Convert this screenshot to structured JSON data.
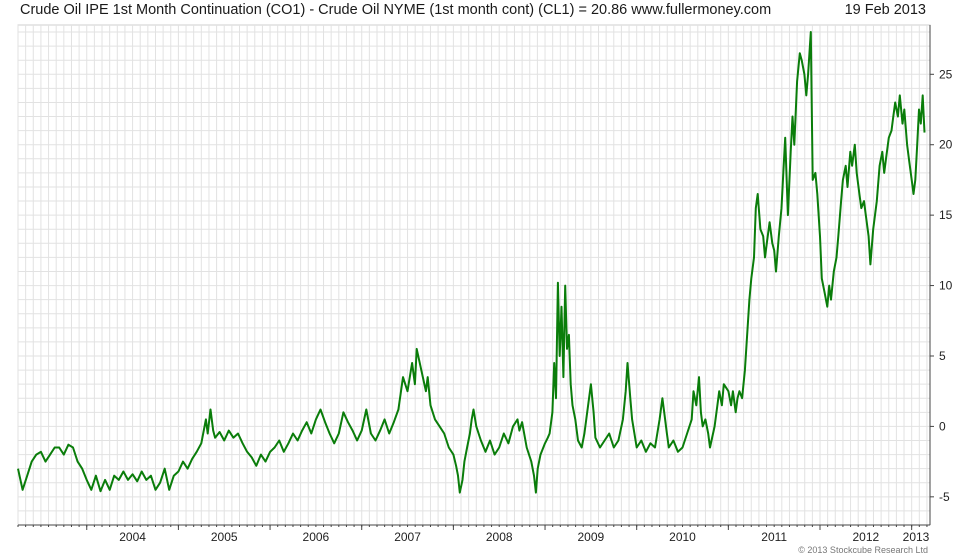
{
  "title": "Crude Oil IPE 1st Month Continuation (CO1) - Crude Oil NYME (1st month cont) (CL1) = 20.86 www.fullermoney.com",
  "date": "19 Feb 2013",
  "credit": "© 2013 Stockcube Research Ltd",
  "colors": {
    "line": "#0a7d0a",
    "grid": "#e2e2e2",
    "axis": "#444444"
  },
  "chart_data": {
    "type": "line",
    "title": "Crude Oil IPE 1st Month Continuation (CO1) - Crude Oil NYME (1st month cont) (CL1) = 20.86",
    "last_value": 20.86,
    "xlim": [
      2003.25,
      2013.2
    ],
    "ylim": [
      -7,
      28.5
    ],
    "x_ticks": [
      {
        "x": 2004,
        "label": "2004"
      },
      {
        "x": 2005,
        "label": "2005"
      },
      {
        "x": 2006,
        "label": "2006"
      },
      {
        "x": 2007,
        "label": "2007"
      },
      {
        "x": 2008,
        "label": "2008"
      },
      {
        "x": 2009,
        "label": "2009"
      },
      {
        "x": 2010,
        "label": "2010"
      },
      {
        "x": 2011,
        "label": "2011"
      },
      {
        "x": 2012,
        "label": "2012"
      },
      {
        "x": 2013,
        "label": "2013"
      }
    ],
    "y_ticks": [
      {
        "y": -5,
        "label": "-5"
      },
      {
        "y": 0,
        "label": "0"
      },
      {
        "y": 5,
        "label": "5"
      },
      {
        "y": 10,
        "label": "10"
      },
      {
        "y": 15,
        "label": "15"
      },
      {
        "y": 20,
        "label": "20"
      },
      {
        "y": 25,
        "label": "25"
      }
    ],
    "grid": true,
    "y_axis_side": "right",
    "series": [
      {
        "color": "#0a7d0a",
        "points": [
          [
            2003.25,
            -3.0
          ],
          [
            2003.3,
            -4.5
          ],
          [
            2003.35,
            -3.5
          ],
          [
            2003.4,
            -2.5
          ],
          [
            2003.45,
            -2.0
          ],
          [
            2003.5,
            -1.8
          ],
          [
            2003.55,
            -2.5
          ],
          [
            2003.6,
            -2.0
          ],
          [
            2003.65,
            -1.5
          ],
          [
            2003.7,
            -1.5
          ],
          [
            2003.75,
            -2.0
          ],
          [
            2003.8,
            -1.3
          ],
          [
            2003.85,
            -1.5
          ],
          [
            2003.9,
            -2.5
          ],
          [
            2003.95,
            -3.0
          ],
          [
            2004.0,
            -3.8
          ],
          [
            2004.05,
            -4.5
          ],
          [
            2004.1,
            -3.5
          ],
          [
            2004.15,
            -4.6
          ],
          [
            2004.2,
            -3.8
          ],
          [
            2004.25,
            -4.5
          ],
          [
            2004.3,
            -3.5
          ],
          [
            2004.35,
            -3.8
          ],
          [
            2004.4,
            -3.2
          ],
          [
            2004.45,
            -3.8
          ],
          [
            2004.5,
            -3.4
          ],
          [
            2004.55,
            -3.9
          ],
          [
            2004.6,
            -3.2
          ],
          [
            2004.65,
            -3.8
          ],
          [
            2004.7,
            -3.5
          ],
          [
            2004.75,
            -4.5
          ],
          [
            2004.8,
            -4.0
          ],
          [
            2004.85,
            -3.0
          ],
          [
            2004.9,
            -4.5
          ],
          [
            2004.95,
            -3.5
          ],
          [
            2005.0,
            -3.2
          ],
          [
            2005.05,
            -2.5
          ],
          [
            2005.1,
            -3.0
          ],
          [
            2005.15,
            -2.3
          ],
          [
            2005.2,
            -1.8
          ],
          [
            2005.25,
            -1.2
          ],
          [
            2005.3,
            0.5
          ],
          [
            2005.32,
            -0.5
          ],
          [
            2005.35,
            1.2
          ],
          [
            2005.38,
            -0.3
          ],
          [
            2005.4,
            -0.8
          ],
          [
            2005.45,
            -0.4
          ],
          [
            2005.5,
            -1.0
          ],
          [
            2005.55,
            -0.3
          ],
          [
            2005.6,
            -0.8
          ],
          [
            2005.65,
            -0.5
          ],
          [
            2005.7,
            -1.2
          ],
          [
            2005.75,
            -1.8
          ],
          [
            2005.8,
            -2.2
          ],
          [
            2005.85,
            -2.8
          ],
          [
            2005.9,
            -2.0
          ],
          [
            2005.95,
            -2.5
          ],
          [
            2006.0,
            -1.8
          ],
          [
            2006.05,
            -1.5
          ],
          [
            2006.1,
            -1.0
          ],
          [
            2006.15,
            -1.8
          ],
          [
            2006.2,
            -1.2
          ],
          [
            2006.25,
            -0.5
          ],
          [
            2006.3,
            -1.0
          ],
          [
            2006.35,
            -0.3
          ],
          [
            2006.4,
            0.3
          ],
          [
            2006.45,
            -0.5
          ],
          [
            2006.5,
            0.5
          ],
          [
            2006.55,
            1.2
          ],
          [
            2006.6,
            0.3
          ],
          [
            2006.65,
            -0.5
          ],
          [
            2006.7,
            -1.2
          ],
          [
            2006.75,
            -0.5
          ],
          [
            2006.8,
            1.0
          ],
          [
            2006.85,
            0.3
          ],
          [
            2006.9,
            -0.3
          ],
          [
            2006.95,
            -1.0
          ],
          [
            2007.0,
            -0.3
          ],
          [
            2007.05,
            1.2
          ],
          [
            2007.1,
            -0.5
          ],
          [
            2007.15,
            -1.0
          ],
          [
            2007.2,
            -0.3
          ],
          [
            2007.25,
            0.5
          ],
          [
            2007.3,
            -0.5
          ],
          [
            2007.35,
            0.3
          ],
          [
            2007.4,
            1.2
          ],
          [
            2007.45,
            3.5
          ],
          [
            2007.5,
            2.5
          ],
          [
            2007.55,
            4.5
          ],
          [
            2007.58,
            3.0
          ],
          [
            2007.6,
            5.5
          ],
          [
            2007.65,
            4.0
          ],
          [
            2007.7,
            2.5
          ],
          [
            2007.72,
            3.5
          ],
          [
            2007.75,
            1.5
          ],
          [
            2007.8,
            0.5
          ],
          [
            2007.85,
            0.0
          ],
          [
            2007.9,
            -0.5
          ],
          [
            2007.95,
            -1.5
          ],
          [
            2008.0,
            -2.0
          ],
          [
            2008.03,
            -2.8
          ],
          [
            2008.05,
            -3.5
          ],
          [
            2008.07,
            -4.7
          ],
          [
            2008.1,
            -3.8
          ],
          [
            2008.12,
            -2.5
          ],
          [
            2008.15,
            -1.5
          ],
          [
            2008.18,
            -0.5
          ],
          [
            2008.2,
            0.5
          ],
          [
            2008.22,
            1.2
          ],
          [
            2008.25,
            0.0
          ],
          [
            2008.3,
            -1.0
          ],
          [
            2008.35,
            -1.8
          ],
          [
            2008.4,
            -1.0
          ],
          [
            2008.45,
            -2.0
          ],
          [
            2008.5,
            -1.5
          ],
          [
            2008.55,
            -0.5
          ],
          [
            2008.6,
            -1.2
          ],
          [
            2008.65,
            0.0
          ],
          [
            2008.7,
            0.5
          ],
          [
            2008.72,
            -0.3
          ],
          [
            2008.75,
            0.3
          ],
          [
            2008.8,
            -1.5
          ],
          [
            2008.85,
            -2.5
          ],
          [
            2008.88,
            -3.5
          ],
          [
            2008.9,
            -4.7
          ],
          [
            2008.92,
            -3.0
          ],
          [
            2008.95,
            -2.0
          ],
          [
            2009.0,
            -1.2
          ],
          [
            2009.03,
            -0.8
          ],
          [
            2009.05,
            -0.5
          ],
          [
            2009.08,
            1.0
          ],
          [
            2009.1,
            4.5
          ],
          [
            2009.12,
            2.0
          ],
          [
            2009.14,
            10.2
          ],
          [
            2009.16,
            5.0
          ],
          [
            2009.18,
            8.5
          ],
          [
            2009.2,
            3.5
          ],
          [
            2009.22,
            10.0
          ],
          [
            2009.24,
            5.5
          ],
          [
            2009.26,
            6.5
          ],
          [
            2009.28,
            3.0
          ],
          [
            2009.3,
            1.5
          ],
          [
            2009.33,
            0.5
          ],
          [
            2009.36,
            -1.0
          ],
          [
            2009.4,
            -1.5
          ],
          [
            2009.43,
            -0.5
          ],
          [
            2009.46,
            1.0
          ],
          [
            2009.5,
            3.0
          ],
          [
            2009.53,
            1.0
          ],
          [
            2009.55,
            -0.8
          ],
          [
            2009.6,
            -1.5
          ],
          [
            2009.65,
            -1.0
          ],
          [
            2009.7,
            -0.5
          ],
          [
            2009.75,
            -1.5
          ],
          [
            2009.8,
            -1.0
          ],
          [
            2009.85,
            0.5
          ],
          [
            2009.88,
            2.5
          ],
          [
            2009.9,
            4.5
          ],
          [
            2009.93,
            2.0
          ],
          [
            2009.95,
            0.5
          ],
          [
            2010.0,
            -1.5
          ],
          [
            2010.05,
            -1.0
          ],
          [
            2010.1,
            -1.8
          ],
          [
            2010.15,
            -1.2
          ],
          [
            2010.2,
            -1.5
          ],
          [
            2010.25,
            0.5
          ],
          [
            2010.28,
            2.0
          ],
          [
            2010.3,
            1.0
          ],
          [
            2010.33,
            -0.5
          ],
          [
            2010.35,
            -1.5
          ],
          [
            2010.4,
            -1.0
          ],
          [
            2010.45,
            -1.8
          ],
          [
            2010.5,
            -1.5
          ],
          [
            2010.55,
            -0.5
          ],
          [
            2010.6,
            0.5
          ],
          [
            2010.62,
            2.5
          ],
          [
            2010.65,
            1.5
          ],
          [
            2010.68,
            3.5
          ],
          [
            2010.7,
            1.0
          ],
          [
            2010.72,
            0.0
          ],
          [
            2010.75,
            0.5
          ],
          [
            2010.78,
            -0.5
          ],
          [
            2010.8,
            -1.5
          ],
          [
            2010.85,
            0.0
          ],
          [
            2010.88,
            1.5
          ],
          [
            2010.9,
            2.5
          ],
          [
            2010.93,
            1.5
          ],
          [
            2010.95,
            3.0
          ],
          [
            2011.0,
            2.5
          ],
          [
            2011.03,
            1.5
          ],
          [
            2011.05,
            2.5
          ],
          [
            2011.08,
            1.0
          ],
          [
            2011.1,
            2.0
          ],
          [
            2011.12,
            2.5
          ],
          [
            2011.15,
            2.0
          ],
          [
            2011.18,
            4.0
          ],
          [
            2011.2,
            6.0
          ],
          [
            2011.23,
            9.0
          ],
          [
            2011.25,
            10.5
          ],
          [
            2011.28,
            12.0
          ],
          [
            2011.3,
            15.5
          ],
          [
            2011.32,
            16.5
          ],
          [
            2011.35,
            14.0
          ],
          [
            2011.38,
            13.5
          ],
          [
            2011.4,
            12.0
          ],
          [
            2011.42,
            13.0
          ],
          [
            2011.45,
            14.5
          ],
          [
            2011.48,
            13.0
          ],
          [
            2011.5,
            12.5
          ],
          [
            2011.52,
            11.0
          ],
          [
            2011.55,
            13.5
          ],
          [
            2011.58,
            15.5
          ],
          [
            2011.6,
            18.0
          ],
          [
            2011.62,
            20.5
          ],
          [
            2011.65,
            15.0
          ],
          [
            2011.68,
            19.5
          ],
          [
            2011.7,
            22.0
          ],
          [
            2011.72,
            20.0
          ],
          [
            2011.75,
            24.5
          ],
          [
            2011.78,
            26.5
          ],
          [
            2011.8,
            26.0
          ],
          [
            2011.83,
            25.0
          ],
          [
            2011.85,
            23.5
          ],
          [
            2011.87,
            25.0
          ],
          [
            2011.9,
            28.0
          ],
          [
            2011.92,
            17.5
          ],
          [
            2011.95,
            18.0
          ],
          [
            2011.97,
            16.5
          ],
          [
            2012.0,
            13.5
          ],
          [
            2012.02,
            10.5
          ],
          [
            2012.05,
            9.5
          ],
          [
            2012.08,
            8.5
          ],
          [
            2012.1,
            10.0
          ],
          [
            2012.12,
            9.0
          ],
          [
            2012.15,
            11.0
          ],
          [
            2012.18,
            12.0
          ],
          [
            2012.2,
            13.5
          ],
          [
            2012.23,
            16.0
          ],
          [
            2012.25,
            17.5
          ],
          [
            2012.28,
            18.5
          ],
          [
            2012.3,
            17.0
          ],
          [
            2012.33,
            19.5
          ],
          [
            2012.35,
            18.5
          ],
          [
            2012.38,
            20.0
          ],
          [
            2012.4,
            18.0
          ],
          [
            2012.43,
            16.5
          ],
          [
            2012.45,
            15.5
          ],
          [
            2012.48,
            16.0
          ],
          [
            2012.5,
            15.0
          ],
          [
            2012.53,
            13.5
          ],
          [
            2012.55,
            11.5
          ],
          [
            2012.58,
            14.0
          ],
          [
            2012.6,
            15.0
          ],
          [
            2012.62,
            16.0
          ],
          [
            2012.65,
            18.5
          ],
          [
            2012.68,
            19.5
          ],
          [
            2012.7,
            18.0
          ],
          [
            2012.72,
            19.0
          ],
          [
            2012.75,
            20.5
          ],
          [
            2012.78,
            21.0
          ],
          [
            2012.8,
            22.0
          ],
          [
            2012.82,
            23.0
          ],
          [
            2012.85,
            22.0
          ],
          [
            2012.87,
            23.5
          ],
          [
            2012.9,
            21.5
          ],
          [
            2012.92,
            22.5
          ],
          [
            2012.95,
            20.0
          ],
          [
            2012.97,
            19.0
          ],
          [
            2013.0,
            17.5
          ],
          [
            2013.02,
            16.5
          ],
          [
            2013.04,
            17.5
          ],
          [
            2013.06,
            20.0
          ],
          [
            2013.08,
            22.5
          ],
          [
            2013.1,
            21.5
          ],
          [
            2013.12,
            23.5
          ],
          [
            2013.14,
            20.86
          ]
        ]
      }
    ]
  }
}
